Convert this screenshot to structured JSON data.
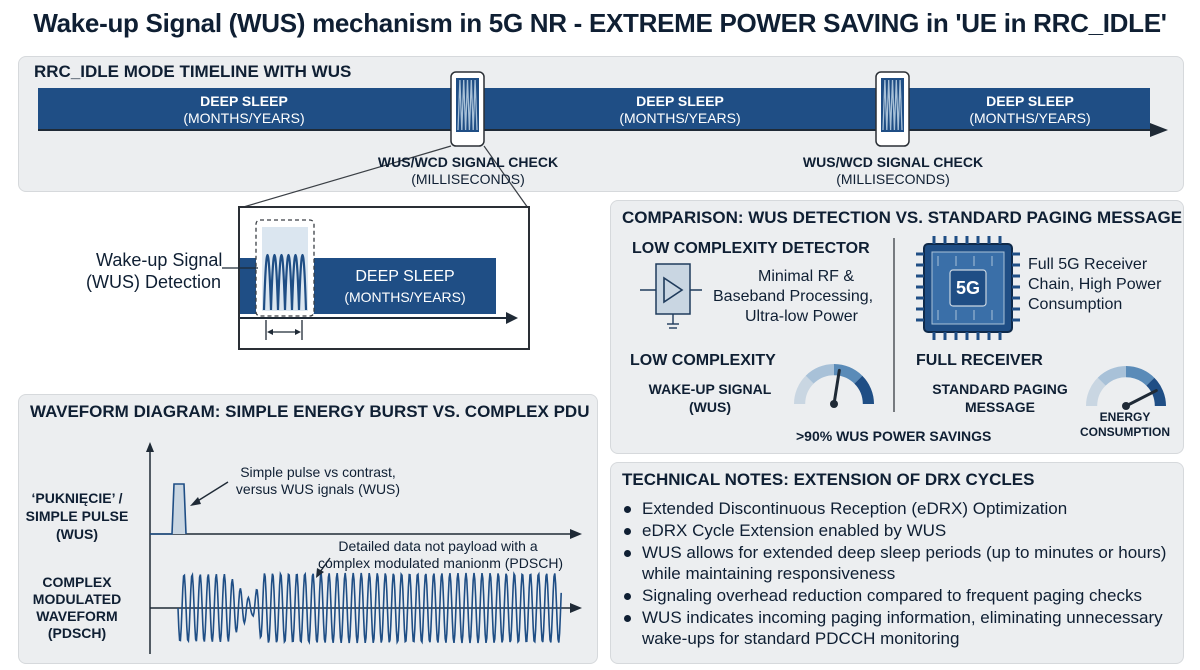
{
  "title": "Wake-up Signal (WUS) mechanism in 5G NR - EXTREME POWER SAVING in 'UE in RRC_IDLE'",
  "timeline": {
    "heading": "RRC_IDLE MODE TIMELINE WITH WUS",
    "segments": [
      {
        "label": "DEEP SLEEP",
        "sublabel": "(MONTHS/YEARS)"
      },
      {
        "label": "DEEP SLEEP",
        "sublabel": "(MONTHS/YEARS)"
      },
      {
        "label": "DEEP SLEEP",
        "sublabel": "(MONTHS/YEARS)"
      }
    ],
    "checks": [
      {
        "label": "WUS/WCD SIGNAL CHECK",
        "sublabel": "(MILLISECONDS)"
      },
      {
        "label": "WUS/WCD SIGNAL CHECK",
        "sublabel": "(MILLISECONDS)"
      }
    ]
  },
  "zoom": {
    "detection_label_line1": "Wake-up Signal",
    "detection_label_line2": "(WUS) Detection",
    "sleep_label": "DEEP SLEEP",
    "sleep_sublabel": "(MONTHS/YEARS)"
  },
  "comparison": {
    "heading": "COMPARISON: WUS DETECTION VS. STANDARD PAGING MESSAGE",
    "left_title": "LOW COMPLEXITY DETECTOR",
    "left_desc": [
      "Minimal RF &",
      "Baseband Processing,",
      "Ultra-low Power"
    ],
    "chip_label": "5G",
    "right_desc": [
      "Full 5G Receiver",
      "Chain, High Power",
      "Consumption"
    ],
    "left_mode": "LOW COMPLEXITY",
    "left_signal": [
      "WAKE-UP SIGNAL",
      "(WUS)"
    ],
    "right_mode": "FULL RECEIVER",
    "right_signal": [
      "STANDARD PAGING",
      "MESSAGE"
    ],
    "savings": ">90% WUS POWER SAVINGS",
    "energy_label": [
      "ENERGY",
      "CONSUMPTION"
    ],
    "gauge_low_level": 0.55,
    "gauge_high_level": 0.85,
    "colors": {
      "navy": "#1f4e85",
      "mid": "#5a8bb8",
      "light": "#a8c1d8",
      "pale": "#c9d6e2"
    }
  },
  "waveform": {
    "heading": "WAVEFORM DIAGRAM: SIMPLE ENERGY BURST VS. COMPLEX PDU",
    "simple_label": [
      "‘PUKNIĘCIE’ /",
      "SIMPLE PULSE",
      "(WUS)"
    ],
    "simple_note": [
      "Simple pulse vs contrast,",
      "versus WUS ignals (WUS)"
    ],
    "complex_label": [
      "COMPLEX",
      "MODULATED",
      "WAVEFORM",
      "(PDSCH)"
    ],
    "complex_note": [
      "Detailed data not payload with a",
      "complex modulated manionm (PDSCH)"
    ]
  },
  "notes": {
    "heading": "TECHNICAL NOTES: EXTENSION OF DRX CYCLES",
    "items": [
      "Extended Discontinuous Reception (eDRX) Optimization",
      "eDRX Cycle Extension enabled by WUS",
      "WUS allows for extended deep sleep periods (up to minutes or hours) while maintaining responsiveness",
      "Signaling overhead reduction compared to frequent paging checks",
      "WUS indicates incoming paging information, eliminating unnecessary wake-ups for standard PDCCH monitoring"
    ]
  }
}
